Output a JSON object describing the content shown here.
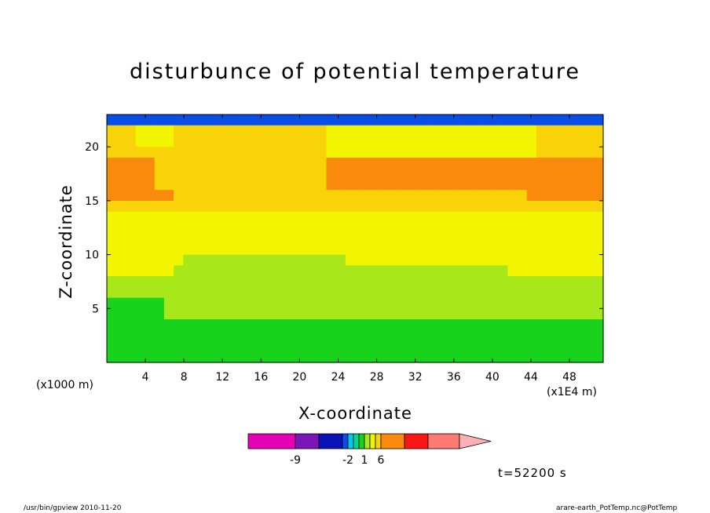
{
  "chart_data": {
    "type": "heatmap",
    "title": "disturbunce of potential temperature",
    "xlabel": "X-coordinate",
    "ylabel": "Z-coordinate",
    "x_unit_left": "(x1000 m)",
    "x_unit_right": "(x1E4 m)",
    "xlim": [
      0,
      51.5
    ],
    "ylim": [
      0,
      23
    ],
    "x_ticks": [
      4,
      8,
      12,
      16,
      20,
      24,
      28,
      32,
      36,
      40,
      44,
      48
    ],
    "y_ticks": [
      5,
      10,
      15,
      20
    ],
    "colorbar": {
      "levels": [
        -12,
        -9,
        -6,
        -3,
        -2,
        -1,
        0,
        1,
        2,
        3,
        6,
        9,
        12
      ],
      "labels": [
        "-9",
        "-2",
        "1",
        "6"
      ],
      "colors": [
        "#e400b4",
        "#7a16b6",
        "#0c13b6",
        "#0a4ee8",
        "#00c8f0",
        "#00d98c",
        "#19d21c",
        "#a8e81b",
        "#f3f400",
        "#f8d30a",
        "#f98a0c",
        "#f91616",
        "#fc7a72",
        "#fcb0b6"
      ]
    },
    "field": [
      [
        3,
        3,
        3,
        3,
        3,
        3,
        3,
        3,
        3,
        3,
        3,
        3,
        3,
        3,
        3,
        3,
        3,
        3,
        3,
        3,
        3,
        3,
        3,
        3,
        3,
        3,
        3,
        3,
        3,
        3,
        3,
        3,
        3,
        3,
        3,
        3,
        3,
        3,
        3,
        3,
        3,
        3,
        3,
        3,
        3,
        3,
        3,
        3,
        3,
        3,
        3,
        3
      ],
      [
        9,
        9,
        9,
        8,
        8,
        8,
        8,
        9,
        9,
        9,
        9,
        9,
        9,
        9,
        9,
        9,
        9,
        9,
        9,
        9,
        9,
        9,
        9,
        8,
        8,
        8,
        8,
        8,
        8,
        8,
        8,
        8,
        8,
        8,
        8,
        8,
        8,
        8,
        8,
        8,
        8,
        8,
        8,
        8,
        8,
        9,
        9,
        9,
        9,
        9,
        9,
        9
      ],
      [
        9,
        9,
        9,
        8,
        8,
        8,
        8,
        9,
        9,
        9,
        9,
        9,
        9,
        9,
        9,
        9,
        9,
        9,
        9,
        9,
        9,
        9,
        9,
        8,
        8,
        8,
        8,
        8,
        8,
        8,
        8,
        8,
        8,
        8,
        8,
        8,
        8,
        8,
        8,
        8,
        8,
        8,
        8,
        8,
        8,
        9,
        9,
        9,
        9,
        9,
        9,
        9
      ],
      [
        9,
        9,
        9,
        9,
        9,
        9,
        9,
        9,
        9,
        9,
        9,
        9,
        9,
        9,
        9,
        9,
        9,
        9,
        9,
        9,
        9,
        9,
        9,
        8,
        8,
        8,
        8,
        8,
        8,
        8,
        8,
        8,
        8,
        8,
        8,
        8,
        8,
        8,
        8,
        8,
        8,
        8,
        8,
        8,
        8,
        9,
        9,
        9,
        9,
        9,
        9,
        9
      ],
      [
        10,
        10,
        10,
        10,
        10,
        9,
        9,
        9,
        9,
        9,
        9,
        9,
        9,
        9,
        9,
        9,
        9,
        9,
        9,
        9,
        9,
        9,
        9,
        10,
        10,
        10,
        10,
        10,
        10,
        10,
        10,
        10,
        10,
        10,
        10,
        10,
        10,
        10,
        10,
        10,
        10,
        10,
        10,
        10,
        10,
        10,
        10,
        10,
        10,
        10,
        10,
        10
      ],
      [
        10,
        10,
        10,
        10,
        10,
        9,
        9,
        9,
        9,
        9,
        9,
        9,
        9,
        9,
        9,
        9,
        9,
        9,
        9,
        9,
        9,
        9,
        9,
        10,
        10,
        10,
        10,
        10,
        10,
        10,
        10,
        10,
        10,
        10,
        10,
        10,
        10,
        10,
        10,
        10,
        10,
        10,
        10,
        10,
        10,
        10,
        10,
        10,
        10,
        10,
        10,
        10
      ],
      [
        10,
        10,
        10,
        10,
        10,
        9,
        9,
        9,
        9,
        9,
        9,
        9,
        9,
        9,
        9,
        9,
        9,
        9,
        9,
        9,
        9,
        9,
        9,
        10,
        10,
        10,
        10,
        10,
        10,
        10,
        10,
        10,
        10,
        10,
        10,
        10,
        10,
        10,
        10,
        10,
        10,
        10,
        10,
        10,
        10,
        10,
        10,
        10,
        10,
        10,
        10,
        10
      ],
      [
        10,
        10,
        10,
        10,
        10,
        10,
        10,
        9,
        9,
        9,
        9,
        9,
        9,
        9,
        9,
        9,
        9,
        9,
        9,
        9,
        9,
        9,
        9,
        9,
        9,
        9,
        9,
        9,
        9,
        9,
        9,
        9,
        9,
        9,
        9,
        9,
        9,
        9,
        9,
        9,
        9,
        9,
        9,
        9,
        10,
        10,
        10,
        10,
        10,
        10,
        10,
        10
      ],
      [
        9,
        9,
        9,
        9,
        9,
        9,
        9,
        9,
        9,
        9,
        9,
        9,
        9,
        9,
        9,
        9,
        9,
        9,
        9,
        9,
        9,
        9,
        9,
        9,
        9,
        9,
        9,
        9,
        9,
        9,
        9,
        9,
        9,
        9,
        9,
        9,
        9,
        9,
        9,
        9,
        9,
        9,
        9,
        9,
        9,
        9,
        9,
        9,
        9,
        9,
        9,
        9
      ],
      [
        8,
        8,
        8,
        8,
        8,
        8,
        8,
        8,
        8,
        8,
        8,
        8,
        8,
        8,
        8,
        8,
        8,
        8,
        8,
        8,
        8,
        8,
        8,
        8,
        8,
        8,
        8,
        8,
        8,
        8,
        8,
        8,
        8,
        8,
        8,
        8,
        8,
        8,
        8,
        8,
        8,
        8,
        8,
        8,
        8,
        8,
        8,
        8,
        8,
        8,
        8,
        8
      ],
      [
        8,
        8,
        8,
        8,
        8,
        8,
        8,
        8,
        8,
        8,
        8,
        8,
        8,
        8,
        8,
        8,
        8,
        8,
        8,
        8,
        8,
        8,
        8,
        8,
        8,
        8,
        8,
        8,
        8,
        8,
        8,
        8,
        8,
        8,
        8,
        8,
        8,
        8,
        8,
        8,
        8,
        8,
        8,
        8,
        8,
        8,
        8,
        8,
        8,
        8,
        8,
        8
      ],
      [
        8,
        8,
        8,
        8,
        8,
        8,
        8,
        8,
        8,
        8,
        8,
        8,
        8,
        8,
        8,
        8,
        8,
        8,
        8,
        8,
        8,
        8,
        8,
        8,
        8,
        8,
        8,
        8,
        8,
        8,
        8,
        8,
        8,
        8,
        8,
        8,
        8,
        8,
        8,
        8,
        8,
        8,
        8,
        8,
        8,
        8,
        8,
        8,
        8,
        8,
        8,
        8
      ],
      [
        8,
        8,
        8,
        8,
        8,
        8,
        8,
        8,
        8,
        8,
        8,
        8,
        8,
        8,
        8,
        8,
        8,
        8,
        8,
        8,
        8,
        8,
        8,
        8,
        8,
        8,
        8,
        8,
        8,
        8,
        8,
        8,
        8,
        8,
        8,
        8,
        8,
        8,
        8,
        8,
        8,
        8,
        8,
        8,
        8,
        8,
        8,
        8,
        8,
        8,
        8,
        8
      ],
      [
        8,
        8,
        8,
        8,
        8,
        8,
        8,
        8,
        7,
        7,
        7,
        7,
        7,
        7,
        7,
        7,
        7,
        7,
        7,
        7,
        7,
        7,
        7,
        7,
        7,
        8,
        8,
        8,
        8,
        8,
        8,
        8,
        8,
        8,
        8,
        8,
        8,
        8,
        8,
        8,
        8,
        8,
        8,
        8,
        8,
        8,
        8,
        8,
        8,
        8,
        8,
        8
      ],
      [
        8,
        8,
        8,
        8,
        8,
        8,
        8,
        7,
        7,
        7,
        7,
        7,
        7,
        7,
        7,
        7,
        7,
        7,
        7,
        7,
        7,
        7,
        7,
        7,
        7,
        7,
        7,
        7,
        7,
        7,
        7,
        7,
        7,
        7,
        7,
        7,
        7,
        7,
        7,
        7,
        7,
        7,
        8,
        8,
        8,
        8,
        8,
        8,
        8,
        8,
        8,
        8
      ],
      [
        7,
        7,
        7,
        7,
        7,
        7,
        7,
        7,
        7,
        7,
        7,
        7,
        7,
        7,
        7,
        7,
        7,
        7,
        7,
        7,
        7,
        7,
        7,
        7,
        7,
        7,
        7,
        7,
        7,
        7,
        7,
        7,
        7,
        7,
        7,
        7,
        7,
        7,
        7,
        7,
        7,
        7,
        7,
        7,
        7,
        7,
        7,
        7,
        7,
        7,
        7,
        7
      ],
      [
        7,
        7,
        7,
        7,
        7,
        7,
        7,
        7,
        7,
        7,
        7,
        7,
        7,
        7,
        7,
        7,
        7,
        7,
        7,
        7,
        7,
        7,
        7,
        7,
        7,
        7,
        7,
        7,
        7,
        7,
        7,
        7,
        7,
        7,
        7,
        7,
        7,
        7,
        7,
        7,
        7,
        7,
        7,
        7,
        7,
        7,
        7,
        7,
        7,
        7,
        7,
        7
      ],
      [
        6,
        6,
        6,
        6,
        6,
        6,
        7,
        7,
        7,
        7,
        7,
        7,
        7,
        7,
        7,
        7,
        7,
        7,
        7,
        7,
        7,
        7,
        7,
        7,
        7,
        7,
        7,
        7,
        7,
        7,
        7,
        7,
        7,
        7,
        7,
        7,
        7,
        7,
        7,
        7,
        7,
        7,
        7,
        7,
        7,
        7,
        7,
        7,
        7,
        7,
        7,
        7
      ],
      [
        6,
        6,
        6,
        6,
        6,
        6,
        7,
        7,
        7,
        7,
        7,
        7,
        7,
        7,
        7,
        7,
        7,
        7,
        7,
        7,
        7,
        7,
        7,
        7,
        7,
        7,
        7,
        7,
        7,
        7,
        7,
        7,
        7,
        7,
        7,
        7,
        7,
        7,
        7,
        7,
        7,
        7,
        7,
        7,
        7,
        7,
        7,
        7,
        7,
        7,
        7,
        7
      ],
      [
        6,
        6,
        6,
        6,
        6,
        6,
        6,
        6,
        6,
        6,
        6,
        6,
        6,
        6,
        6,
        6,
        6,
        6,
        6,
        6,
        6,
        6,
        6,
        6,
        6,
        6,
        6,
        6,
        6,
        6,
        6,
        6,
        6,
        6,
        6,
        6,
        6,
        6,
        6,
        6,
        6,
        6,
        6,
        6,
        6,
        6,
        6,
        6,
        6,
        6,
        6,
        6
      ],
      [
        6,
        6,
        6,
        6,
        6,
        6,
        6,
        6,
        6,
        6,
        6,
        6,
        6,
        6,
        6,
        6,
        6,
        6,
        6,
        6,
        6,
        6,
        6,
        6,
        6,
        6,
        6,
        6,
        6,
        6,
        6,
        6,
        6,
        6,
        6,
        6,
        6,
        6,
        6,
        6,
        6,
        6,
        6,
        6,
        6,
        6,
        6,
        6,
        6,
        6,
        6,
        6
      ],
      [
        6,
        6,
        6,
        6,
        6,
        6,
        6,
        6,
        6,
        6,
        6,
        6,
        6,
        6,
        6,
        6,
        6,
        6,
        6,
        6,
        6,
        6,
        6,
        6,
        6,
        6,
        6,
        6,
        6,
        6,
        6,
        6,
        6,
        6,
        6,
        6,
        6,
        6,
        6,
        6,
        6,
        6,
        6,
        6,
        6,
        6,
        6,
        6,
        6,
        6,
        6,
        6
      ],
      [
        6,
        6,
        6,
        6,
        6,
        6,
        6,
        6,
        6,
        6,
        6,
        6,
        6,
        6,
        6,
        6,
        6,
        6,
        6,
        6,
        6,
        6,
        6,
        6,
        6,
        6,
        6,
        6,
        6,
        6,
        6,
        6,
        6,
        6,
        6,
        6,
        6,
        6,
        6,
        6,
        6,
        6,
        6,
        6,
        6,
        6,
        6,
        6,
        6,
        6,
        6,
        6
      ]
    ]
  },
  "footer": {
    "left": "/usr/bin/gpview  2010-11-20",
    "right": "arare-earth_PotTemp.nc@PotTemp"
  },
  "annotation": {
    "time": "t=52200 s"
  }
}
